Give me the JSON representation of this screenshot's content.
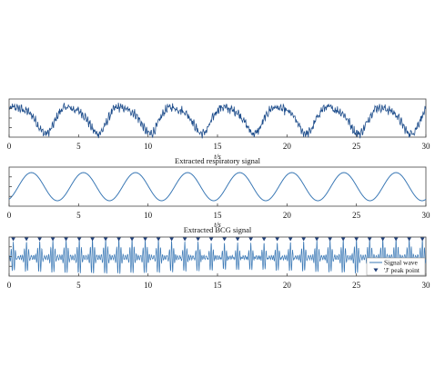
{
  "chart_data": [
    {
      "type": "line",
      "xlabel": "t/s",
      "x_ticks": [
        "0",
        "5",
        "10",
        "15",
        "20",
        "25",
        "30"
      ],
      "xlim": [
        0,
        30
      ],
      "series": [
        {
          "style": "noisy-raw-waveform",
          "color": "#1f4e8c",
          "cycles_in_window": 8
        }
      ]
    },
    {
      "type": "line",
      "title": "Extracted respiratory signal",
      "xlabel": "t/s",
      "x_ticks": [
        "0",
        "5",
        "10",
        "15",
        "20",
        "25",
        "30"
      ],
      "xlim": [
        0,
        30
      ],
      "series": [
        {
          "style": "smooth-sinusoid",
          "color": "#3a78b5",
          "period_s": 3.75
        }
      ]
    },
    {
      "type": "line",
      "title": "Extracted BCG signal",
      "x_ticks": [
        "0",
        "5",
        "10",
        "15",
        "20",
        "25",
        "30"
      ],
      "xlim": [
        0,
        30
      ],
      "legend_position": "bottom-right",
      "series": [
        {
          "name": "Signal wave",
          "style": "oscillatory-heartbeat-waveform",
          "color": "#3a78b5",
          "beat_interval_s": 0.95
        },
        {
          "name": "'J' peak point",
          "style": "markers-downward-triangle",
          "color": "#1f3f7a"
        }
      ]
    }
  ]
}
